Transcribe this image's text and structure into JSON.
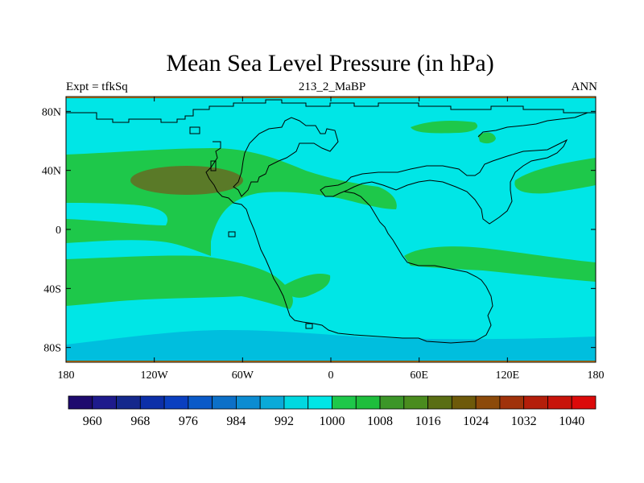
{
  "title": "Mean Sea Level Pressure (in hPa)",
  "subtitle_left": "Expt = tfkSq",
  "subtitle_center": "213_2_MaBP",
  "subtitle_right": "ANN",
  "map": {
    "x_ticks": [
      {
        "value": -180,
        "label": "180"
      },
      {
        "value": -120,
        "label": "120W"
      },
      {
        "value": -60,
        "label": "60W"
      },
      {
        "value": 0,
        "label": "0"
      },
      {
        "value": 60,
        "label": "60E"
      },
      {
        "value": 120,
        "label": "120E"
      },
      {
        "value": 180,
        "label": "180"
      }
    ],
    "y_ticks": [
      {
        "value": 80,
        "label": "80N"
      },
      {
        "value": 40,
        "label": "40N"
      },
      {
        "value": 0,
        "label": "0"
      },
      {
        "value": -40,
        "label": "40S"
      },
      {
        "value": -80,
        "label": "80S"
      }
    ],
    "xlim": [
      -180,
      180
    ],
    "ylim": [
      -90,
      90
    ]
  },
  "colorbar": {
    "labels": [
      "960",
      "968",
      "976",
      "984",
      "992",
      "1000",
      "1008",
      "1016",
      "1024",
      "1032",
      "1040"
    ],
    "colors": [
      "#1e0a6e",
      "#1e1a8c",
      "#14288c",
      "#0c2fa8",
      "#0a3fc0",
      "#0a5ac8",
      "#0c70c8",
      "#0c8cd2",
      "#0aaad8",
      "#00d8e0",
      "#00e6e6",
      "#1ec84a",
      "#1ebe3c",
      "#3c9628",
      "#4a8c1e",
      "#5a6e14",
      "#6e5a0a",
      "#8c4a0a",
      "#a0320a",
      "#b41e0a",
      "#c8140a",
      "#dc0a0a"
    ]
  },
  "colors": {
    "fill_1000": "#00e6e6",
    "fill_992": "#00bede",
    "fill_1008": "#1ec84a",
    "fill_1016": "#5a7a28",
    "outline": "#000000"
  }
}
